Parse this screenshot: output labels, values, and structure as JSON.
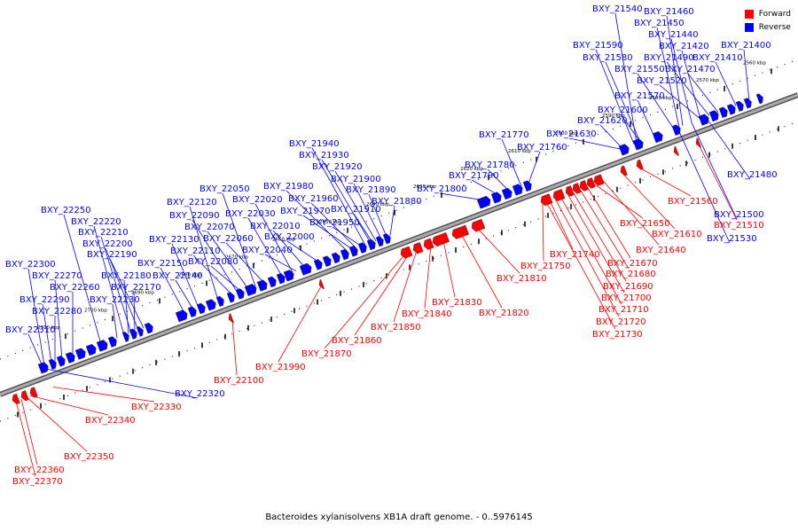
{
  "caption": "Bacteroides xylanisolvens XB1A draft genome. - 0..5976145",
  "legend": [
    {
      "label": "Forward",
      "color": "#ff0000"
    },
    {
      "label": "Reverse",
      "color": "#0000ff"
    }
  ],
  "colors": {
    "forward": "#ff0000",
    "reverse": "#0000ff",
    "backbone": "#999999"
  },
  "kbp_ticks": [
    "2560 kbp",
    "2570 kbp",
    "2580 kbp",
    "2590 kbp",
    "2600 kbp",
    "2610 kbp",
    "2620 kbp",
    "2630 kbp",
    "2640 kbp",
    "2650 kbp",
    "2660 kbp",
    "2670 kbp",
    "2680 kbp",
    "2690 kbp",
    "2700 kbp",
    "2710 kbp"
  ],
  "reverse_genes": [
    "BXY_21540",
    "BXY_21460",
    "BXY_21450",
    "BXY_21440",
    "BXY_21420",
    "BXY_21400",
    "BXY_21590",
    "BXY_21580",
    "BXY_21490",
    "BXY_21410",
    "BXY_21550",
    "BXY_21470",
    "BXY_21520",
    "BXY_21570",
    "BXY_21600",
    "BXY_21620",
    "BXY_21630",
    "BXY_21770",
    "BXY_21760",
    "BXY_21780",
    "BXY_21790",
    "BXY_21800",
    "BXY_21940",
    "BXY_21930",
    "BXY_21920",
    "BXY_21900",
    "BXY_21890",
    "BXY_21980",
    "BXY_21960",
    "BXY_21910",
    "BXY_21880",
    "BXY_22050",
    "BXY_22020",
    "BXY_21970",
    "BXY_22120",
    "BXY_22030",
    "BXY_21950",
    "BXY_22090",
    "BXY_22070",
    "BXY_22010",
    "BXY_22000",
    "BXY_22250",
    "BXY_22060",
    "BXY_22220",
    "BXY_22130",
    "BXY_22040",
    "BXY_22210",
    "BXY_22110",
    "BXY_22200",
    "BXY_22080",
    "BXY_22190",
    "BXY_22150",
    "BXY_22300",
    "BXY_22140",
    "BXY_22270",
    "BXY_22180",
    "BXY_22260",
    "BXY_22170",
    "BXY_22230",
    "BXY_22290",
    "BXY_22280",
    "BXY_22310",
    "BXY_21480",
    "BXY_21500",
    "BXY_21530",
    "BXY_22320"
  ],
  "forward_genes": [
    "BXY_21560",
    "BXY_21510",
    "BXY_21610",
    "BXY_21650",
    "BXY_21640",
    "BXY_21670",
    "BXY_21680",
    "BXY_21690",
    "BXY_21700",
    "BXY_21710",
    "BXY_21720",
    "BXY_21730",
    "BXY_21740",
    "BXY_21750",
    "BXY_21810",
    "BXY_21820",
    "BXY_21830",
    "BXY_21840",
    "BXY_21850",
    "BXY_21860",
    "BXY_21870",
    "BXY_21990",
    "BXY_22100",
    "BXY_22330",
    "BXY_22340",
    "BXY_22350",
    "BXY_22360",
    "BXY_22370"
  ]
}
